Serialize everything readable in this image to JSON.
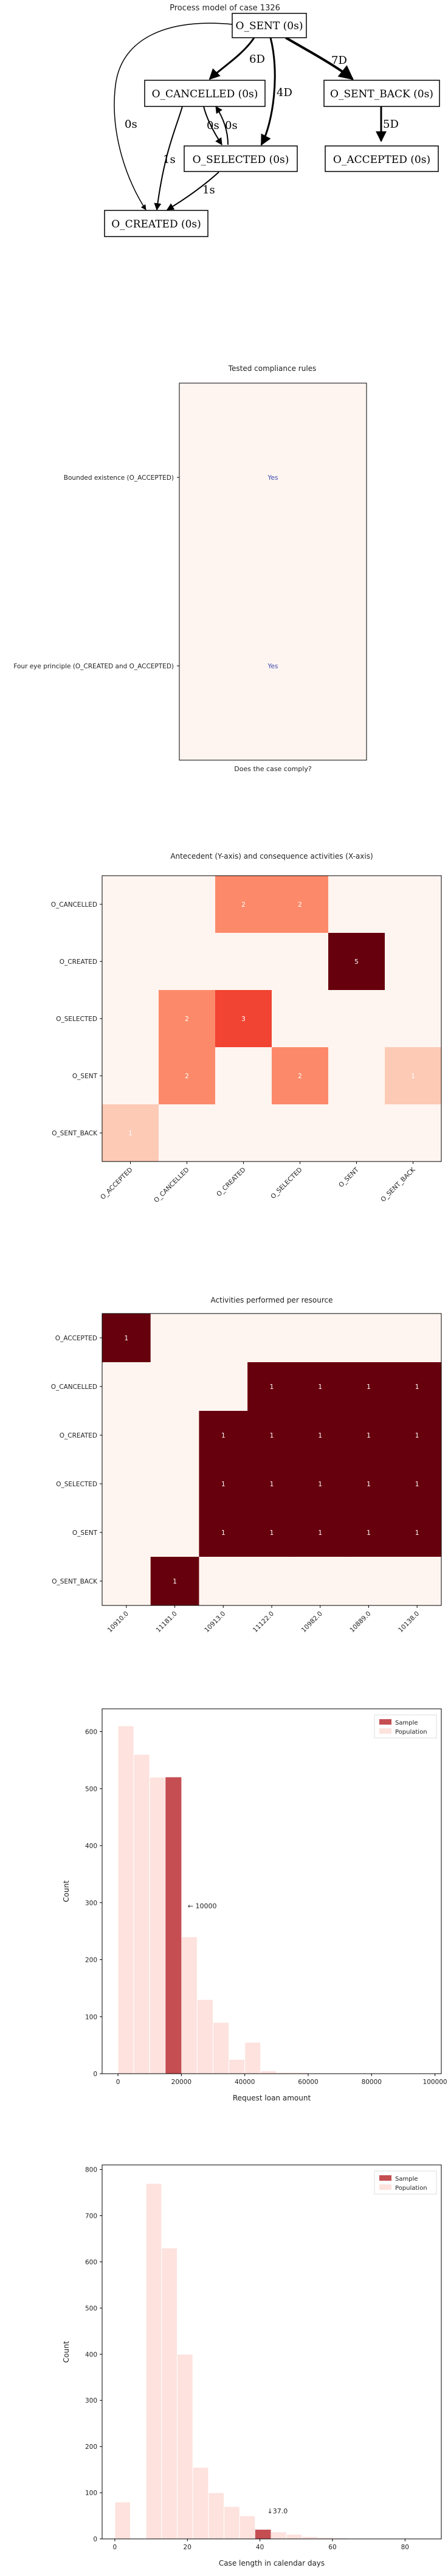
{
  "process_model": {
    "title": "Process model of case 1326",
    "nodes": [
      {
        "id": "sent",
        "label": "O_SENT (0s)"
      },
      {
        "id": "cancelled",
        "label": "O_CANCELLED (0s)"
      },
      {
        "id": "sent_back",
        "label": "O_SENT_BACK (0s)"
      },
      {
        "id": "selected",
        "label": "O_SELECTED (0s)"
      },
      {
        "id": "accepted",
        "label": "O_ACCEPTED (0s)"
      },
      {
        "id": "created",
        "label": "O_CREATED (0s)"
      }
    ],
    "edges": [
      {
        "from": "sent",
        "to": "cancelled",
        "label": "6D"
      },
      {
        "from": "sent",
        "to": "selected",
        "label": "4D"
      },
      {
        "from": "sent",
        "to": "sent_back",
        "label": "7D"
      },
      {
        "from": "sent_back",
        "to": "accepted",
        "label": "5D"
      },
      {
        "from": "cancelled",
        "to": "selected",
        "label": "0s"
      },
      {
        "from": "selected",
        "to": "cancelled",
        "label": "0s"
      },
      {
        "from": "cancelled",
        "to": "created",
        "label": "1s"
      },
      {
        "from": "selected",
        "to": "created",
        "label": "1s"
      },
      {
        "from": "sent",
        "to": "created",
        "label": "0s"
      }
    ]
  },
  "compliance": {
    "title": "Tested compliance rules",
    "xlabel": "Does the case comply?",
    "rules": [
      {
        "label": "Bounded existence (O_ACCEPTED)",
        "value": "Yes"
      },
      {
        "label": "Four eye principle (O_CREATED and O_ACCEPTED)",
        "value": "Yes"
      }
    ]
  },
  "chart_data": [
    {
      "type": "heatmap",
      "title": "Antecedent (Y-axis) and consequence activities (X-axis)",
      "rows": [
        "O_CANCELLED",
        "O_CREATED",
        "O_SELECTED",
        "O_SENT",
        "O_SENT_BACK"
      ],
      "columns": [
        "O_ACCEPTED",
        "O_CANCELLED",
        "O_CREATED",
        "O_SELECTED",
        "O_SENT",
        "O_SENT_BACK"
      ],
      "values": [
        [
          0,
          0,
          2,
          2,
          0,
          0
        ],
        [
          0,
          0,
          0,
          0,
          5,
          0
        ],
        [
          0,
          2,
          3,
          0,
          0,
          0
        ],
        [
          0,
          2,
          0,
          2,
          0,
          1
        ],
        [
          1,
          0,
          0,
          0,
          0,
          0
        ]
      ],
      "vmax": 5
    },
    {
      "type": "heatmap",
      "title": "Activities performed per resource",
      "rows": [
        "O_ACCEPTED",
        "O_CANCELLED",
        "O_CREATED",
        "O_SELECTED",
        "O_SENT",
        "O_SENT_BACK"
      ],
      "columns": [
        "10910.0",
        "11181.0",
        "10913.0",
        "11122.0",
        "10982.0",
        "10889.0",
        "10138.0"
      ],
      "values": [
        [
          1,
          0,
          0,
          0,
          0,
          0,
          0
        ],
        [
          0,
          0,
          0,
          1,
          1,
          1,
          1
        ],
        [
          0,
          0,
          1,
          1,
          1,
          1,
          1
        ],
        [
          0,
          0,
          1,
          1,
          1,
          1,
          1
        ],
        [
          0,
          0,
          1,
          1,
          1,
          1,
          1
        ],
        [
          0,
          1,
          0,
          0,
          0,
          0,
          0
        ]
      ],
      "vmax": 1
    },
    {
      "type": "bar",
      "title": "",
      "xlabel": "Request loan amount",
      "ylabel": "Count",
      "xlim": [
        -5000,
        102000
      ],
      "ylim": [
        0,
        640
      ],
      "xticks": [
        0,
        20000,
        40000,
        60000,
        80000,
        100000
      ],
      "yticks": [
        0,
        100,
        200,
        300,
        400,
        500,
        600
      ],
      "bin_width": 5000,
      "population": {
        "name": "Population",
        "bin_starts": [
          0,
          5000,
          10000,
          15000,
          20000,
          25000,
          30000,
          35000,
          40000,
          45000,
          50000,
          55000,
          60000,
          65000,
          70000,
          75000,
          80000,
          85000,
          90000,
          95000
        ],
        "values": [
          610,
          560,
          520,
          300,
          240,
          130,
          90,
          25,
          55,
          5,
          2,
          2,
          1,
          1,
          1,
          0,
          0,
          0,
          0,
          1
        ]
      },
      "sample": {
        "name": "Sample",
        "bin_start": 15000,
        "value": 520
      },
      "annotation": {
        "text": "← 10000",
        "x": 22000,
        "y": 290
      },
      "legend": [
        "Sample",
        "Population"
      ],
      "legend_position": "top-right"
    },
    {
      "type": "bar",
      "title": "",
      "xlabel": "Case length in calendar days",
      "ylabel": "Count",
      "xlim": [
        -3.5,
        90
      ],
      "ylim": [
        0,
        810
      ],
      "xticks": [
        0,
        20,
        40,
        60,
        80
      ],
      "yticks": [
        0,
        100,
        200,
        300,
        400,
        500,
        600,
        700,
        800
      ],
      "bin_width": 4.3,
      "population": {
        "name": "Population",
        "bin_starts": [
          0,
          4.3,
          8.6,
          12.9,
          17.2,
          21.5,
          25.8,
          30.1,
          34.4,
          38.7,
          43,
          47.3,
          51.6,
          55.9,
          60.2,
          64.5,
          68.8,
          73.1,
          77.4,
          81.7
        ],
        "values": [
          80,
          0,
          770,
          630,
          400,
          155,
          100,
          70,
          50,
          20,
          15,
          10,
          5,
          3,
          2,
          1,
          1,
          0,
          0,
          1
        ]
      },
      "sample": {
        "name": "Sample",
        "bin_start": 38.7,
        "value": 20
      },
      "annotation": {
        "text": "↓37.0",
        "x": 42,
        "y": 55
      },
      "legend": [
        "Sample",
        "Population"
      ],
      "legend_position": "top-right"
    }
  ]
}
